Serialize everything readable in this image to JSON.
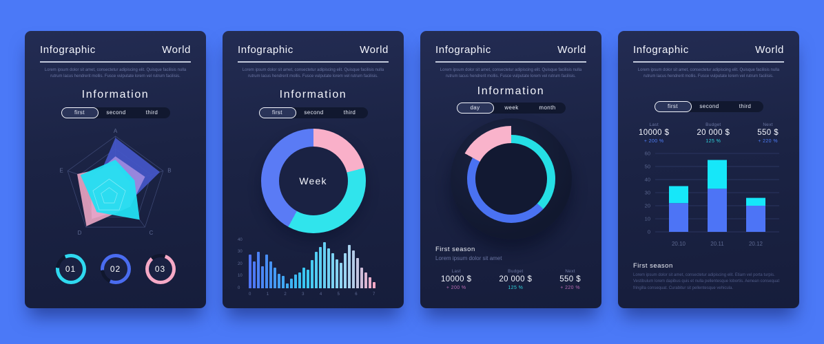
{
  "canvas": {
    "background": "#4b79f7"
  },
  "cards": [
    {
      "title": "Infographic",
      "brand": "World",
      "intro": "Lorem ipsum dolor sit amet, consectetur adipiscing elit. Quisque facilisis nulla rutrum lacus hendrerit mollis. Fusce vulputate lorem vel rutrum facilisis.",
      "section_title": "Information",
      "tabs": [
        "first",
        "second",
        "third"
      ]
    },
    {
      "title": "Infographic",
      "brand": "World",
      "intro": "Lorem ipsum dolor sit amet, consectetur adipiscing elit. Quisque facilisis nulla rutrum lacus hendrerit mollis. Fusce vulputate lorem vel rutrum facilisis.",
      "section_title": "Information",
      "tabs": [
        "first",
        "second",
        "third"
      ]
    },
    {
      "title": "Infographic",
      "brand": "World",
      "intro": "Lorem ipsum dolor sit amet, consectetur adipiscing elit. Quisque facilisis nulla rutrum lacus hendrerit mollis. Fusce vulputate lorem vel rutrum facilisis.",
      "section_title": "Information",
      "tabs": [
        "day",
        "week",
        "month"
      ],
      "season": {
        "heading": "First season",
        "subtitle": "Lorem ipsum dolor sit amet"
      },
      "stats": [
        {
          "label": "Last",
          "value": "10000 $",
          "delta": "+ 200 %"
        },
        {
          "label": "Budget",
          "value": "20 000 $",
          "delta": "125 %"
        },
        {
          "label": "Next",
          "value": "550 $",
          "delta": "+ 220 %"
        }
      ]
    },
    {
      "title": "Infographic",
      "brand": "World",
      "intro": "Lorem ipsum dolor sit amet, consectetur adipiscing elit. Quisque facilisis nulla rutrum lacus hendrerit mollis. Fusce vulputate lorem vel rutrum facilisis.",
      "tabs": [
        "first",
        "second",
        "third"
      ],
      "stats": [
        {
          "label": "Last",
          "value": "10000 $",
          "delta": "+ 200 %"
        },
        {
          "label": "Budget",
          "value": "20 000 $",
          "delta": "125 %"
        },
        {
          "label": "Next",
          "value": "550 $",
          "delta": "+ 220 %"
        }
      ],
      "season": {
        "heading": "First season",
        "paragraph": "Lorem ipsum dolor sit amet, consectetur adipiscing elit. Etiam vel porta turpis. Vestibulum lorem dapibus quis et nulla pellentesque lobortis. Aenean consequat fringilla consequat. Curabitur sit pellentesque vehicula."
      }
    }
  ],
  "chart_data": [
    {
      "id": "radar",
      "type": "radar",
      "card": 1,
      "axes": [
        "A",
        "B",
        "C",
        "D",
        "E"
      ],
      "grid_levels": [
        1,
        0.75,
        0.5,
        0.25
      ],
      "axis_max": 1,
      "series": [
        {
          "name": "deep-blue",
          "color": "#4457c9",
          "opacity": 0.92,
          "values": [
            0.97,
            0.93,
            0.42,
            0.55,
            0.38
          ]
        },
        {
          "name": "lavender",
          "color": "#a78fe3",
          "opacity": 0.85,
          "values": [
            0.6,
            0.62,
            0.5,
            0.8,
            0.52
          ]
        },
        {
          "name": "pink",
          "color": "#f0a9c6",
          "opacity": 0.88,
          "values": [
            0.42,
            0.3,
            0.5,
            0.98,
            0.8
          ]
        },
        {
          "name": "cyan",
          "color": "#22dff2",
          "opacity": 0.95,
          "values": [
            0.53,
            0.4,
            0.82,
            0.63,
            0.73
          ]
        }
      ]
    },
    {
      "id": "rings",
      "type": "pie",
      "card": 1,
      "rings": [
        {
          "label": "01",
          "color": "#2fd9f0",
          "sweep": 300,
          "start": 335
        },
        {
          "label": "02",
          "color": "#4a6cf0",
          "sweep": 300,
          "start": 265
        },
        {
          "label": "03",
          "color": "#f6a9c6",
          "sweep": 300,
          "start": 20
        }
      ],
      "track_color": "#10172e"
    },
    {
      "id": "week-donut",
      "type": "pie",
      "card": 2,
      "center_label": "Week",
      "slices": [
        {
          "name": "pink",
          "value": 21,
          "color": "#f9b0c9"
        },
        {
          "name": "cyan",
          "value": 37,
          "color": "#30e4ec"
        },
        {
          "name": "blue",
          "value": 42,
          "color": "#5a7bf5"
        }
      ]
    },
    {
      "id": "mini-bars",
      "type": "bar",
      "card": 2,
      "ylim": [
        0,
        40
      ],
      "y_ticks": [
        40,
        30,
        20,
        10,
        0
      ],
      "x_ticks": [
        "0",
        "1",
        "2",
        "3",
        "4",
        "5",
        "6",
        "7"
      ],
      "values": [
        28,
        22,
        30,
        18,
        28,
        22,
        17,
        12,
        10,
        4,
        8,
        11,
        13,
        17,
        15,
        23,
        30,
        34,
        38,
        33,
        29,
        24,
        21,
        29,
        36,
        31,
        25,
        17,
        13,
        9,
        5
      ],
      "gradient": [
        "#4f74f5",
        "#38c9f2",
        "#9fd6f2",
        "#f7a8c4"
      ]
    },
    {
      "id": "season-donut",
      "type": "pie",
      "card": 3,
      "slices": [
        {
          "name": "cyan",
          "value": 37,
          "color": "#25dfe5"
        },
        {
          "name": "blue",
          "value": 46,
          "color": "#4a72f2"
        },
        {
          "name": "pink",
          "value": 17,
          "color": "#f9b3cb"
        }
      ]
    },
    {
      "id": "stacked-bars",
      "type": "bar",
      "card": 4,
      "stacked": true,
      "categories": [
        "20.10",
        "20.11",
        "20.12"
      ],
      "ylim": [
        0,
        60
      ],
      "y_ticks": [
        60,
        50,
        40,
        30,
        20,
        10,
        0
      ],
      "series": [
        {
          "name": "primary",
          "color": "#4d74f6",
          "values": [
            22,
            33,
            20
          ]
        },
        {
          "name": "secondary",
          "color": "#16e7f9",
          "values": [
            13,
            22,
            6
          ]
        }
      ],
      "grid": true
    }
  ]
}
